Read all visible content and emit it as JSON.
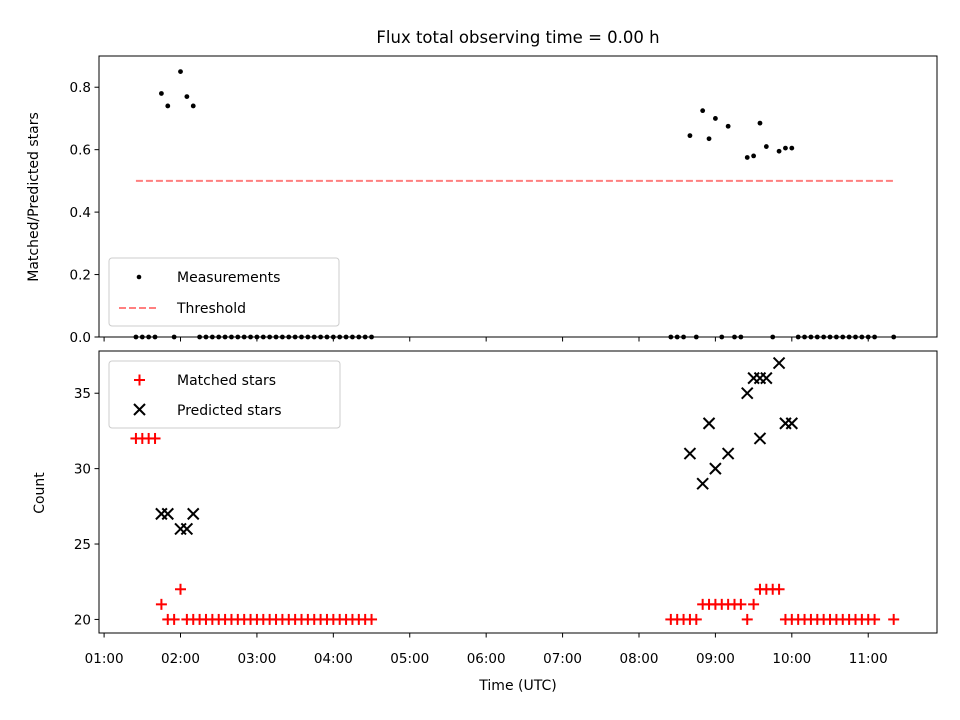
{
  "title": "Flux total observing time = 0.00 h",
  "chart_data": [
    {
      "type": "scatter",
      "ylabel": "Matched/Predicted stars",
      "xlabel": "",
      "xlim": [
        "00:56",
        "11:54"
      ],
      "ylim": [
        0,
        0.9
      ],
      "yticks": [
        0.0,
        0.2,
        0.4,
        0.6,
        0.8
      ],
      "ytick_labels": [
        "0.0",
        "0.2",
        "0.4",
        "0.6",
        "0.8"
      ],
      "grid": false,
      "legend": {
        "position": "lower-left",
        "entries": [
          {
            "label": "Measurements",
            "marker": "dot",
            "color": "#000000"
          },
          {
            "label": "Threshold",
            "marker": "dashed-line",
            "color": "#ff7f7f"
          }
        ]
      },
      "threshold": {
        "y": 0.5,
        "x_start": "01:25",
        "x_end": "11:20",
        "color": "#ff7f7f"
      },
      "series": [
        {
          "name": "Measurements",
          "color": "#000000",
          "points": [
            [
              "01:25",
              0.0
            ],
            [
              "01:30",
              0.0
            ],
            [
              "01:35",
              0.0
            ],
            [
              "01:40",
              0.0
            ],
            [
              "01:45",
              0.78
            ],
            [
              "01:50",
              0.74
            ],
            [
              "01:55",
              0.0
            ],
            [
              "02:00",
              0.85
            ],
            [
              "02:05",
              0.77
            ],
            [
              "02:10",
              0.74
            ],
            [
              "02:15",
              0.0
            ],
            [
              "02:20",
              0.0
            ],
            [
              "02:25",
              0.0
            ],
            [
              "02:30",
              0.0
            ],
            [
              "02:35",
              0.0
            ],
            [
              "02:40",
              0.0
            ],
            [
              "02:45",
              0.0
            ],
            [
              "02:50",
              0.0
            ],
            [
              "02:55",
              0.0
            ],
            [
              "03:00",
              0.0
            ],
            [
              "03:05",
              0.0
            ],
            [
              "03:10",
              0.0
            ],
            [
              "03:15",
              0.0
            ],
            [
              "03:20",
              0.0
            ],
            [
              "03:25",
              0.0
            ],
            [
              "03:30",
              0.0
            ],
            [
              "03:35",
              0.0
            ],
            [
              "03:40",
              0.0
            ],
            [
              "03:45",
              0.0
            ],
            [
              "03:50",
              0.0
            ],
            [
              "03:55",
              0.0
            ],
            [
              "04:00",
              0.0
            ],
            [
              "04:05",
              0.0
            ],
            [
              "04:10",
              0.0
            ],
            [
              "04:15",
              0.0
            ],
            [
              "04:20",
              0.0
            ],
            [
              "04:25",
              0.0
            ],
            [
              "04:30",
              0.0
            ],
            [
              "08:25",
              0.0
            ],
            [
              "08:30",
              0.0
            ],
            [
              "08:35",
              0.0
            ],
            [
              "08:40",
              0.645
            ],
            [
              "08:45",
              0.0
            ],
            [
              "08:50",
              0.725
            ],
            [
              "08:55",
              0.635
            ],
            [
              "09:00",
              0.7
            ],
            [
              "09:05",
              0.0
            ],
            [
              "09:10",
              0.675
            ],
            [
              "09:15",
              0.0
            ],
            [
              "09:20",
              0.0
            ],
            [
              "09:25",
              0.575
            ],
            [
              "09:30",
              0.58
            ],
            [
              "09:35",
              0.685
            ],
            [
              "09:40",
              0.61
            ],
            [
              "09:45",
              0.0
            ],
            [
              "09:50",
              0.595
            ],
            [
              "09:55",
              0.605
            ],
            [
              "10:00",
              0.605
            ],
            [
              "10:05",
              0.0
            ],
            [
              "10:10",
              0.0
            ],
            [
              "10:15",
              0.0
            ],
            [
              "10:20",
              0.0
            ],
            [
              "10:25",
              0.0
            ],
            [
              "10:30",
              0.0
            ],
            [
              "10:35",
              0.0
            ],
            [
              "10:40",
              0.0
            ],
            [
              "10:45",
              0.0
            ],
            [
              "10:50",
              0.0
            ],
            [
              "10:55",
              0.0
            ],
            [
              "11:00",
              0.0
            ],
            [
              "11:05",
              0.0
            ],
            [
              "11:20",
              0.0
            ]
          ]
        }
      ]
    },
    {
      "type": "scatter",
      "ylabel": "Count",
      "xlabel": "Time (UTC)",
      "xlim": [
        "00:56",
        "11:54"
      ],
      "ylim": [
        19.1,
        37.8
      ],
      "yticks": [
        20,
        25,
        30,
        35
      ],
      "ytick_labels": [
        "20",
        "25",
        "30",
        "35"
      ],
      "xticks": [
        "01:00",
        "02:00",
        "03:00",
        "04:00",
        "05:00",
        "06:00",
        "07:00",
        "08:00",
        "09:00",
        "10:00",
        "11:00"
      ],
      "grid": false,
      "legend": {
        "position": "upper-left",
        "entries": [
          {
            "label": "Matched stars",
            "marker": "plus",
            "color": "#ff0000"
          },
          {
            "label": "Predicted stars",
            "marker": "x",
            "color": "#000000"
          }
        ]
      },
      "series": [
        {
          "name": "Matched stars",
          "marker": "plus",
          "color": "#ff0000",
          "points": [
            [
              "01:25",
              32
            ],
            [
              "01:30",
              32
            ],
            [
              "01:35",
              32
            ],
            [
              "01:40",
              32
            ],
            [
              "01:45",
              21
            ],
            [
              "01:50",
              20
            ],
            [
              "01:55",
              20
            ],
            [
              "02:00",
              22
            ],
            [
              "02:05",
              20
            ],
            [
              "02:10",
              20
            ],
            [
              "02:15",
              20
            ],
            [
              "02:20",
              20
            ],
            [
              "02:25",
              20
            ],
            [
              "02:30",
              20
            ],
            [
              "02:35",
              20
            ],
            [
              "02:40",
              20
            ],
            [
              "02:45",
              20
            ],
            [
              "02:50",
              20
            ],
            [
              "02:55",
              20
            ],
            [
              "03:00",
              20
            ],
            [
              "03:05",
              20
            ],
            [
              "03:10",
              20
            ],
            [
              "03:15",
              20
            ],
            [
              "03:20",
              20
            ],
            [
              "03:25",
              20
            ],
            [
              "03:30",
              20
            ],
            [
              "03:35",
              20
            ],
            [
              "03:40",
              20
            ],
            [
              "03:45",
              20
            ],
            [
              "03:50",
              20
            ],
            [
              "03:55",
              20
            ],
            [
              "04:00",
              20
            ],
            [
              "04:05",
              20
            ],
            [
              "04:10",
              20
            ],
            [
              "04:15",
              20
            ],
            [
              "04:20",
              20
            ],
            [
              "04:25",
              20
            ],
            [
              "04:30",
              20
            ],
            [
              "08:25",
              20
            ],
            [
              "08:30",
              20
            ],
            [
              "08:35",
              20
            ],
            [
              "08:40",
              20
            ],
            [
              "08:45",
              20
            ],
            [
              "08:50",
              21
            ],
            [
              "08:55",
              21
            ],
            [
              "09:00",
              21
            ],
            [
              "09:05",
              21
            ],
            [
              "09:10",
              21
            ],
            [
              "09:15",
              21
            ],
            [
              "09:20",
              21
            ],
            [
              "09:25",
              20
            ],
            [
              "09:30",
              21
            ],
            [
              "09:35",
              22
            ],
            [
              "09:40",
              22
            ],
            [
              "09:45",
              22
            ],
            [
              "09:50",
              22
            ],
            [
              "09:55",
              20
            ],
            [
              "10:00",
              20
            ],
            [
              "10:05",
              20
            ],
            [
              "10:10",
              20
            ],
            [
              "10:15",
              20
            ],
            [
              "10:20",
              20
            ],
            [
              "10:25",
              20
            ],
            [
              "10:30",
              20
            ],
            [
              "10:35",
              20
            ],
            [
              "10:40",
              20
            ],
            [
              "10:45",
              20
            ],
            [
              "10:50",
              20
            ],
            [
              "10:55",
              20
            ],
            [
              "11:00",
              20
            ],
            [
              "11:05",
              20
            ],
            [
              "11:20",
              20
            ]
          ]
        },
        {
          "name": "Predicted stars",
          "marker": "x",
          "color": "#000000",
          "points": [
            [
              "01:45",
              27
            ],
            [
              "01:50",
              27
            ],
            [
              "02:00",
              26
            ],
            [
              "02:05",
              26
            ],
            [
              "02:10",
              27
            ],
            [
              "08:40",
              31
            ],
            [
              "08:50",
              29
            ],
            [
              "08:55",
              33
            ],
            [
              "09:00",
              30
            ],
            [
              "09:10",
              31
            ],
            [
              "09:25",
              35
            ],
            [
              "09:30",
              36
            ],
            [
              "09:35",
              32
            ],
            [
              "09:35",
              36
            ],
            [
              "09:40",
              36
            ],
            [
              "09:50",
              37
            ],
            [
              "09:55",
              33
            ],
            [
              "10:00",
              33
            ]
          ]
        }
      ]
    }
  ]
}
